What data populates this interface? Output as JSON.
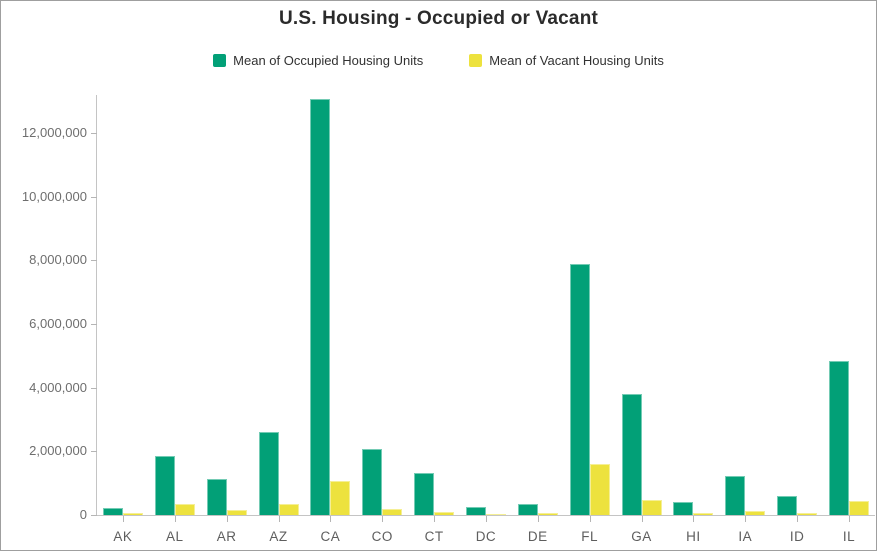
{
  "chart_data": {
    "type": "bar",
    "title": "U.S. Housing - Occupied or Vacant",
    "xlabel": "",
    "ylabel": "",
    "categories": [
      "AK",
      "AL",
      "AR",
      "AZ",
      "CA",
      "CO",
      "CT",
      "DC",
      "DE",
      "FL",
      "GA",
      "HI",
      "IA",
      "ID",
      "IL"
    ],
    "series": [
      {
        "name": "Mean of Occupied Housing Units",
        "color": "#02A077",
        "values": [
          230000,
          1850000,
          1130000,
          2600000,
          13070000,
          2090000,
          1330000,
          250000,
          345000,
          7900000,
          3790000,
          420000,
          1230000,
          610000,
          4850000
        ]
      },
      {
        "name": "Mean of Vacant Housing Units",
        "color": "#EDE23E",
        "values": [
          55000,
          350000,
          160000,
          350000,
          1070000,
          190000,
          105000,
          30000,
          80000,
          1590000,
          460000,
          70000,
          130000,
          75000,
          440000
        ]
      }
    ],
    "ylim": [
      0,
      13200000
    ],
    "yticks": [
      {
        "value": 0,
        "label": "0"
      },
      {
        "value": 2000000,
        "label": "2,000,000"
      },
      {
        "value": 4000000,
        "label": "4,000,000"
      },
      {
        "value": 6000000,
        "label": "6,000,000"
      },
      {
        "value": 8000000,
        "label": "8,000,000"
      },
      {
        "value": 10000000,
        "label": "10,000,000"
      },
      {
        "value": 12000000,
        "label": "12,000,000"
      }
    ],
    "grid": false,
    "legend_position": "top-center"
  },
  "colors": {
    "axis": "#c4c4c4",
    "tick": "#b5b5b5",
    "y_label_text": "#6e6e6e",
    "x_label_text": "#5e5e5e",
    "title_text": "#2b2b2b",
    "legend_text": "#323232",
    "frame_border": "#9f9f9f",
    "background": "#ffffff"
  }
}
